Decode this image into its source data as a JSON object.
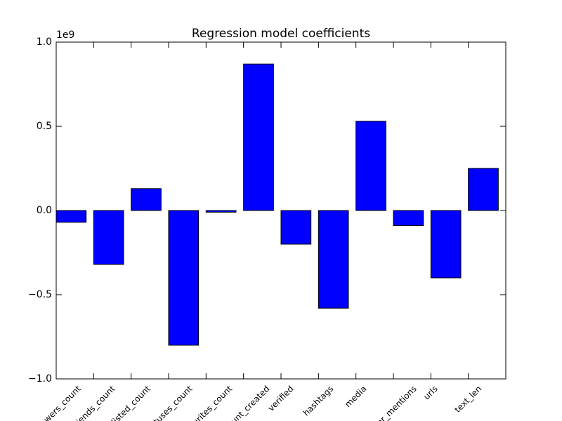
{
  "chart_data": {
    "type": "bar",
    "title": "Regression model coefficients",
    "offset_label": "1e9",
    "categories": [
      "followers_count",
      "friends_count",
      "listed_count",
      "statuses_count",
      "favourites_count",
      "account_created",
      "verified",
      "hashtags",
      "media",
      "user_mentions",
      "urls",
      "text_len"
    ],
    "values": [
      -0.07,
      -0.32,
      0.13,
      -0.8,
      -0.01,
      0.87,
      -0.2,
      -0.58,
      0.53,
      -0.09,
      -0.4,
      0.25
    ],
    "color": "#0000ff",
    "ylim": [
      -1.0,
      1.0
    ],
    "yticks": [
      {
        "value": -1.0,
        "label": "−1.0"
      },
      {
        "value": -0.5,
        "label": "−0.5"
      },
      {
        "value": 0.0,
        "label": "0.0"
      },
      0.5,
      {
        "value": 1.0,
        "label": "1.0"
      }
    ],
    "grid": false
  }
}
